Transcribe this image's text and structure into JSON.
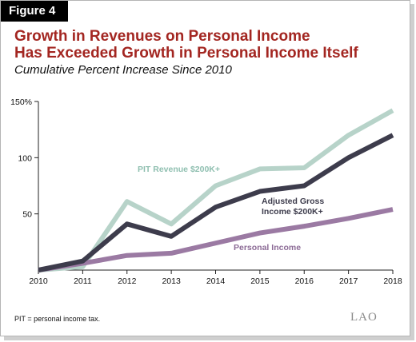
{
  "figure_label": "Figure 4",
  "title_line1": "Growth in Revenues on Personal Income",
  "title_line2": "Has Exceeded Growth in Personal Income Itself",
  "subtitle": "Cumulative Percent Increase Since 2010",
  "footnote": "PIT = personal income tax.",
  "logo": "LAO",
  "colors": {
    "title": "#a32621",
    "pit_revenue": "#b7d3c9",
    "agi": "#3d3c4c",
    "personal_income": "#9b7aa3"
  },
  "chart_data": {
    "type": "line",
    "x": [
      "2010",
      "2011",
      "2012",
      "2013",
      "2014",
      "2015",
      "2016",
      "2017",
      "2018"
    ],
    "ylim": [
      0,
      150
    ],
    "yticks": [
      50,
      100,
      150
    ],
    "ytick_labels": [
      "50",
      "100",
      "150%"
    ],
    "grid": false,
    "series": [
      {
        "name_lines": [
          "PIT Revenue $200K+"
        ],
        "color": "#b7d3c9",
        "values": [
          0,
          3,
          61,
          41,
          75,
          90,
          91,
          120,
          142
        ]
      },
      {
        "name_lines": [
          "Adjusted Gross",
          "Income $200K+"
        ],
        "color": "#3d3c4c",
        "values": [
          0,
          8,
          41,
          30,
          56,
          70,
          75,
          100,
          120
        ]
      },
      {
        "name_lines": [
          "Personal Income"
        ],
        "color": "#9b7aa3",
        "values": [
          0,
          6,
          13,
          15,
          24,
          33,
          39,
          46,
          54
        ]
      }
    ]
  }
}
